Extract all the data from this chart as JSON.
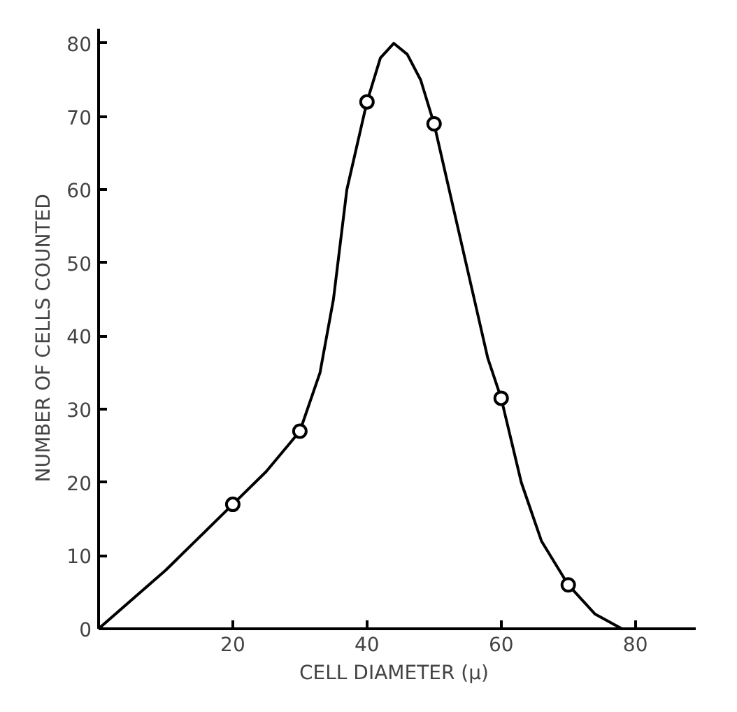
{
  "chart_data": {
    "type": "line",
    "xlabel": "CELL  DIAMETER (μ)",
    "ylabel": "NUMBER  OF  CELLS  COUNTED",
    "xlim": [
      0,
      89
    ],
    "ylim": [
      0,
      82
    ],
    "xticks": [
      20,
      40,
      60,
      80
    ],
    "yticks": [
      0,
      10,
      20,
      30,
      40,
      50,
      60,
      70,
      80
    ],
    "grid": false,
    "line_style": "solid",
    "series": [
      {
        "color": "#000000",
        "marker": "none",
        "x": [
          0,
          10,
          20,
          25,
          30,
          33,
          35,
          37,
          40,
          42,
          44,
          46,
          48,
          50,
          53,
          56,
          58,
          60,
          63,
          66,
          70,
          74,
          78
        ],
        "values": [
          0,
          8,
          17,
          21.5,
          27,
          35,
          45,
          60,
          72,
          78,
          80,
          78.5,
          75,
          69,
          57,
          45,
          37,
          31.5,
          20,
          12,
          6,
          2,
          0
        ]
      },
      {
        "type": "scatter",
        "color": "#000000",
        "marker": "circle",
        "x": [
          20,
          30,
          40,
          50,
          60,
          70
        ],
        "values": [
          17,
          27,
          72,
          69,
          31.5,
          6
        ]
      }
    ]
  }
}
